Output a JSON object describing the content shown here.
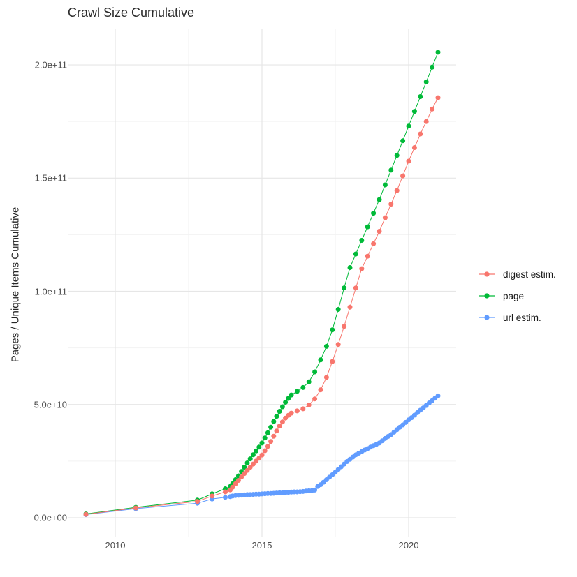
{
  "title": "Crawl Size Cumulative",
  "chart_data": {
    "type": "scatter",
    "title": "Crawl Size Cumulative",
    "xlabel": "",
    "ylabel": "Pages / Unique Items Cumulative",
    "legend_position": "right",
    "grid": true,
    "background_color": "#FFFFFF",
    "grid_major_color": "#E6E6E6",
    "grid_minor_color": "#F2F2F2",
    "x_range": [
      2008.4,
      2021.6
    ],
    "y_range_e9": [
      -8.6,
      215.7
    ],
    "value_scale": "1e9 (points_e9 values are in billions of pages)",
    "x_ticks": [
      {
        "label": "2010",
        "value": 2010
      },
      {
        "label": "2015",
        "value": 2015
      },
      {
        "label": "2020",
        "value": 2020
      }
    ],
    "x_minor": [
      2012.5,
      2017.5
    ],
    "y_ticks": [
      {
        "label": "0.0e+00",
        "value_e9": 0
      },
      {
        "label": "5.0e+10",
        "value_e9": 50
      },
      {
        "label": "1.0e+11",
        "value_e9": 100
      },
      {
        "label": "1.5e+11",
        "value_e9": 150
      },
      {
        "label": "2.0e+11",
        "value_e9": 200
      }
    ],
    "y_minor_e9": [
      25,
      75,
      125,
      175
    ],
    "series": [
      {
        "name": "digest estim.",
        "color": "#F8766D",
        "points_e9": [
          [
            2009.0,
            1.5
          ],
          [
            2010.7,
            4.3
          ],
          [
            2012.8,
            7.2
          ],
          [
            2013.3,
            9.6
          ],
          [
            2013.75,
            11.4
          ],
          [
            2013.92,
            12.3
          ],
          [
            2014.0,
            13.5
          ],
          [
            2014.1,
            15.0
          ],
          [
            2014.2,
            16.5
          ],
          [
            2014.3,
            18.0
          ],
          [
            2014.4,
            19.5
          ],
          [
            2014.5,
            20.9
          ],
          [
            2014.6,
            22.3
          ],
          [
            2014.7,
            23.7
          ],
          [
            2014.8,
            25.0
          ],
          [
            2014.9,
            26.3
          ],
          [
            2015.0,
            27.7
          ],
          [
            2015.1,
            29.6
          ],
          [
            2015.2,
            31.5
          ],
          [
            2015.3,
            33.7
          ],
          [
            2015.4,
            36.0
          ],
          [
            2015.5,
            38.3
          ],
          [
            2015.6,
            40.5
          ],
          [
            2015.7,
            42.3
          ],
          [
            2015.8,
            44.0
          ],
          [
            2015.9,
            45.2
          ],
          [
            2016.0,
            46.2
          ],
          [
            2016.2,
            47.2
          ],
          [
            2016.4,
            48.1
          ],
          [
            2016.6,
            49.8
          ],
          [
            2016.8,
            52.5
          ],
          [
            2017.0,
            56.5
          ],
          [
            2017.2,
            62.0
          ],
          [
            2017.4,
            69.0
          ],
          [
            2017.6,
            76.5
          ],
          [
            2017.8,
            84.5
          ],
          [
            2018.0,
            93.0
          ],
          [
            2018.2,
            101.5
          ],
          [
            2018.4,
            110.0
          ],
          [
            2018.6,
            115.5
          ],
          [
            2018.8,
            121.0
          ],
          [
            2019.0,
            126.5
          ],
          [
            2019.2,
            132.5
          ],
          [
            2019.4,
            138.5
          ],
          [
            2019.6,
            144.5
          ],
          [
            2019.8,
            151.0
          ],
          [
            2020.0,
            157.5
          ],
          [
            2020.2,
            163.5
          ],
          [
            2020.4,
            169.5
          ],
          [
            2020.6,
            175.0
          ],
          [
            2020.8,
            180.5
          ],
          [
            2021.0,
            185.5
          ]
        ]
      },
      {
        "name": "page",
        "color": "#00BA38",
        "points_e9": [
          [
            2009.0,
            1.7
          ],
          [
            2010.7,
            4.6
          ],
          [
            2012.8,
            7.8
          ],
          [
            2013.3,
            10.5
          ],
          [
            2013.75,
            12.8
          ],
          [
            2013.92,
            13.8
          ],
          [
            2014.0,
            15.0
          ],
          [
            2014.1,
            16.8
          ],
          [
            2014.2,
            18.5
          ],
          [
            2014.3,
            20.4
          ],
          [
            2014.4,
            22.3
          ],
          [
            2014.5,
            24.2
          ],
          [
            2014.6,
            26.0
          ],
          [
            2014.7,
            27.8
          ],
          [
            2014.8,
            29.5
          ],
          [
            2014.9,
            31.2
          ],
          [
            2015.0,
            33.0
          ],
          [
            2015.1,
            35.2
          ],
          [
            2015.2,
            37.5
          ],
          [
            2015.3,
            40.0
          ],
          [
            2015.4,
            42.5
          ],
          [
            2015.5,
            44.8
          ],
          [
            2015.6,
            47.0
          ],
          [
            2015.7,
            49.0
          ],
          [
            2015.8,
            51.0
          ],
          [
            2015.9,
            52.7
          ],
          [
            2016.0,
            54.2
          ],
          [
            2016.2,
            55.8
          ],
          [
            2016.4,
            57.5
          ],
          [
            2016.6,
            60.0
          ],
          [
            2016.8,
            64.4
          ],
          [
            2017.0,
            69.7
          ],
          [
            2017.2,
            75.7
          ],
          [
            2017.4,
            83.0
          ],
          [
            2017.6,
            92.0
          ],
          [
            2017.8,
            101.5
          ],
          [
            2018.0,
            110.5
          ],
          [
            2018.2,
            116.5
          ],
          [
            2018.4,
            122.5
          ],
          [
            2018.6,
            128.5
          ],
          [
            2018.8,
            134.5
          ],
          [
            2019.0,
            140.5
          ],
          [
            2019.2,
            147.0
          ],
          [
            2019.4,
            153.5
          ],
          [
            2019.6,
            160.0
          ],
          [
            2019.8,
            166.5
          ],
          [
            2020.0,
            173.0
          ],
          [
            2020.2,
            179.5
          ],
          [
            2020.4,
            186.0
          ],
          [
            2020.6,
            192.5
          ],
          [
            2020.8,
            199.0
          ],
          [
            2021.0,
            205.6
          ]
        ]
      },
      {
        "name": "url estim.",
        "color": "#619CFF",
        "points_e9": [
          [
            2009.0,
            1.4
          ],
          [
            2010.7,
            4.0
          ],
          [
            2012.8,
            6.4
          ],
          [
            2013.3,
            8.3
          ],
          [
            2013.75,
            9.0
          ],
          [
            2013.92,
            9.3
          ],
          [
            2014.0,
            9.6
          ],
          [
            2014.1,
            9.8
          ],
          [
            2014.2,
            9.9
          ],
          [
            2014.3,
            10.0
          ],
          [
            2014.4,
            10.1
          ],
          [
            2014.5,
            10.2
          ],
          [
            2014.6,
            10.2
          ],
          [
            2014.7,
            10.3
          ],
          [
            2014.8,
            10.4
          ],
          [
            2014.9,
            10.4
          ],
          [
            2015.0,
            10.5
          ],
          [
            2015.1,
            10.6
          ],
          [
            2015.2,
            10.7
          ],
          [
            2015.3,
            10.7
          ],
          [
            2015.4,
            10.8
          ],
          [
            2015.5,
            10.9
          ],
          [
            2015.6,
            11.0
          ],
          [
            2015.7,
            11.0
          ],
          [
            2015.8,
            11.1
          ],
          [
            2015.9,
            11.2
          ],
          [
            2016.0,
            11.3
          ],
          [
            2016.1,
            11.4
          ],
          [
            2016.2,
            11.4
          ],
          [
            2016.3,
            11.5
          ],
          [
            2016.4,
            11.6
          ],
          [
            2016.5,
            11.8
          ],
          [
            2016.6,
            11.9
          ],
          [
            2016.7,
            12.0
          ],
          [
            2016.8,
            12.2
          ],
          [
            2016.9,
            13.8
          ],
          [
            2017.0,
            14.6
          ],
          [
            2017.1,
            15.7
          ],
          [
            2017.2,
            16.8
          ],
          [
            2017.3,
            17.9
          ],
          [
            2017.4,
            19.0
          ],
          [
            2017.5,
            20.1
          ],
          [
            2017.6,
            21.3
          ],
          [
            2017.7,
            22.5
          ],
          [
            2017.8,
            23.7
          ],
          [
            2017.9,
            24.8
          ],
          [
            2018.0,
            25.8
          ],
          [
            2018.1,
            26.8
          ],
          [
            2018.2,
            27.8
          ],
          [
            2018.3,
            28.5
          ],
          [
            2018.4,
            29.2
          ],
          [
            2018.5,
            29.9
          ],
          [
            2018.6,
            30.5
          ],
          [
            2018.7,
            31.2
          ],
          [
            2018.8,
            31.8
          ],
          [
            2018.9,
            32.4
          ],
          [
            2019.0,
            33.0
          ],
          [
            2019.1,
            34.0
          ],
          [
            2019.2,
            35.0
          ],
          [
            2019.3,
            35.9
          ],
          [
            2019.4,
            36.7
          ],
          [
            2019.5,
            37.8
          ],
          [
            2019.6,
            38.9
          ],
          [
            2019.7,
            40.0
          ],
          [
            2019.8,
            41.0
          ],
          [
            2019.9,
            42.1
          ],
          [
            2020.0,
            43.2
          ],
          [
            2020.1,
            44.2
          ],
          [
            2020.2,
            45.3
          ],
          [
            2020.3,
            46.4
          ],
          [
            2020.4,
            47.5
          ],
          [
            2020.5,
            48.5
          ],
          [
            2020.6,
            49.6
          ],
          [
            2020.7,
            50.7
          ],
          [
            2020.8,
            51.7
          ],
          [
            2020.9,
            52.8
          ],
          [
            2021.0,
            53.8
          ]
        ]
      }
    ]
  }
}
